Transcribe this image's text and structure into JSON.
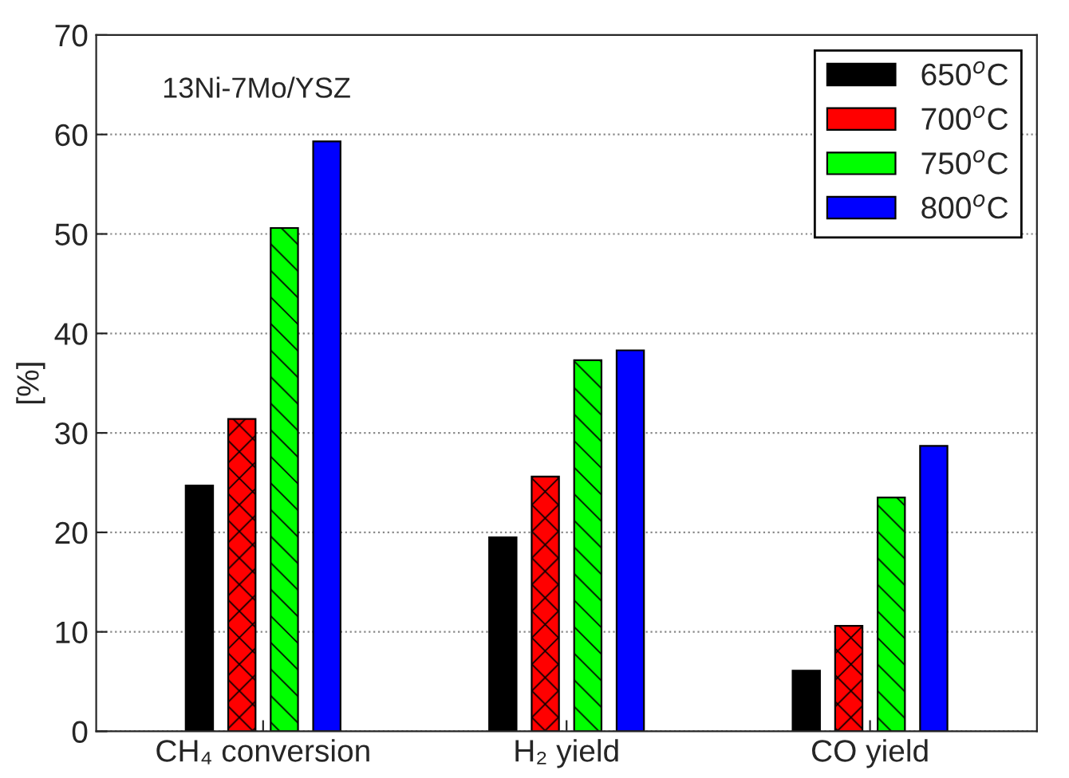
{
  "chart_data": {
    "type": "bar",
    "ylabel": "[%]",
    "categories": [
      "CH₄ conversion",
      "H₂ yield",
      "CO yield"
    ],
    "series": [
      {
        "name": "650$^{o}$C",
        "color": "#000000",
        "values": [
          24.7,
          19.5,
          6.1
        ]
      },
      {
        "name": "700$^{o}$C",
        "color": "#ff0000",
        "values": [
          31.4,
          25.6,
          10.6
        ]
      },
      {
        "name": "750$^{o}$C",
        "color": "#00ff00",
        "values": [
          50.6,
          37.3,
          23.5
        ]
      },
      {
        "name": "800$^{o}$C",
        "color": "#0000ff",
        "values": [
          59.3,
          38.3,
          28.7
        ]
      }
    ],
    "ylim": [
      0,
      70
    ],
    "yticks": [
      0,
      10,
      20,
      30,
      40,
      50,
      60,
      70
    ],
    "grid": "y",
    "legend": "top right",
    "annotations": [
      "13Ni-7Mo/YSZ"
    ]
  }
}
